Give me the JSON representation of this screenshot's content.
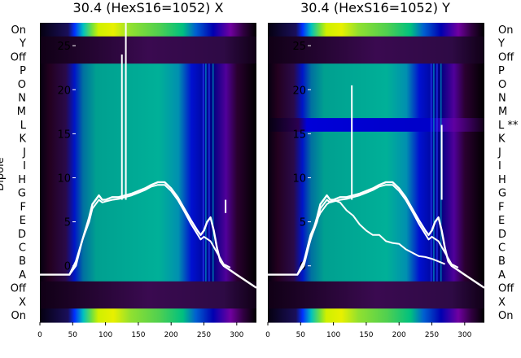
{
  "chart_data": [
    {
      "type": "heatmap",
      "title": "30.4 (HexS16=1052) X",
      "ylabel": "Dipole",
      "rows_top_to_bottom": [
        "On",
        "Y",
        "Off",
        "P",
        "O",
        "N",
        "M",
        "L",
        "K",
        "J",
        "I",
        "H",
        "G",
        "F",
        "E",
        "D",
        "C",
        "B",
        "A",
        "Off",
        "X",
        "On"
      ],
      "xticks": [
        0,
        50,
        100,
        150,
        200,
        250,
        300
      ],
      "yticks": [
        0,
        5,
        10,
        15,
        20,
        25
      ],
      "xlim": [
        0,
        330
      ],
      "ylim": [
        -6.4,
        27.6
      ],
      "overlay_lines": [
        {
          "x": [
            0,
            15,
            30,
            45,
            55,
            65,
            75,
            80,
            85,
            90,
            95,
            100,
            110,
            120,
            130,
            140,
            150,
            160,
            170,
            180,
            190,
            200,
            210,
            220,
            230,
            240,
            245,
            250,
            255,
            260,
            265,
            270,
            275,
            280,
            290,
            300,
            310,
            320,
            330
          ],
          "y": [
            -1,
            -1,
            -1,
            -1,
            0.5,
            3,
            5.5,
            7,
            7.5,
            8,
            7.5,
            7.5,
            7.8,
            7.8,
            8.0,
            8.2,
            8.5,
            8.8,
            9.2,
            9.5,
            9.5,
            8.8,
            7.8,
            6.5,
            5.2,
            4,
            3.5,
            4,
            5,
            5.5,
            4,
            2,
            0.5,
            0,
            -0.5,
            -1,
            -1.5,
            -2,
            -2.5
          ]
        },
        {
          "x": [
            45,
            55,
            65,
            75,
            80,
            85,
            90,
            95,
            100,
            110,
            120,
            130,
            140,
            150,
            160,
            170,
            180,
            190,
            200,
            210,
            220,
            230,
            240,
            245,
            250,
            260,
            270,
            280,
            290
          ],
          "y": [
            -1,
            0,
            3,
            5,
            6.5,
            7,
            7.5,
            7.2,
            7.3,
            7.5,
            7.6,
            7.8,
            8.0,
            8.3,
            8.6,
            9.0,
            9.2,
            9.2,
            8.5,
            7.5,
            6.2,
            4.8,
            3.6,
            3,
            3.3,
            2.8,
            1.5,
            0.2,
            -0.2
          ]
        }
      ],
      "spikes": [
        {
          "x": 125,
          "y": 24
        },
        {
          "x": 131,
          "y": 27.6
        },
        {
          "x": 283,
          "y": 6
        }
      ]
    },
    {
      "type": "heatmap",
      "title": "30.4 (HexS16=1052) Y",
      "rows_top_to_bottom": [
        "On",
        "Y",
        "Off",
        "P",
        "O",
        "N",
        "M",
        "L **",
        "K",
        "J",
        "I",
        "H",
        "G",
        "F",
        "E",
        "D",
        "C",
        "B",
        "A",
        "Off",
        "X",
        "On"
      ],
      "xticks": [
        0,
        50,
        100,
        150,
        200,
        250,
        300
      ],
      "yticks": [
        0,
        5,
        10,
        15,
        20,
        25
      ],
      "xlim": [
        0,
        330
      ],
      "ylim": [
        -6.4,
        27.6
      ],
      "overlay_lines": [
        {
          "x": [
            0,
            15,
            30,
            45,
            55,
            65,
            75,
            80,
            85,
            90,
            95,
            100,
            110,
            120,
            130,
            140,
            150,
            160,
            170,
            180,
            190,
            200,
            210,
            220,
            230,
            240,
            245,
            250,
            255,
            260,
            265,
            270,
            275,
            280,
            290,
            300,
            310,
            320,
            330
          ],
          "y": [
            -1,
            -1,
            -1,
            -1,
            0.5,
            3,
            5.5,
            7,
            7.5,
            8,
            7.5,
            7.5,
            7.8,
            7.8,
            8.0,
            8.2,
            8.5,
            8.8,
            9.2,
            9.5,
            9.5,
            8.8,
            7.8,
            6.5,
            5.2,
            4,
            3.5,
            4,
            5,
            5.5,
            4,
            2,
            0.5,
            0,
            -0.5,
            -1,
            -1.5,
            -2,
            -2.5
          ]
        },
        {
          "x": [
            45,
            55,
            65,
            75,
            80,
            85,
            90,
            95,
            100,
            110,
            120,
            130,
            140,
            150,
            160,
            170,
            180,
            190,
            200,
            210,
            220,
            230,
            240,
            245,
            250,
            260,
            270,
            280,
            290
          ],
          "y": [
            -1,
            0,
            3,
            5,
            6.5,
            7,
            7.5,
            7.2,
            7.3,
            7.5,
            7.6,
            7.8,
            8.0,
            8.3,
            8.6,
            9.0,
            9.2,
            9.2,
            8.5,
            7.5,
            6.2,
            4.8,
            3.6,
            3,
            3.3,
            2.8,
            1.5,
            0.2,
            -0.2
          ]
        },
        {
          "x": [
            45,
            55,
            65,
            75,
            80,
            90,
            100,
            110,
            120,
            130,
            140,
            150,
            160,
            170,
            180,
            190,
            200,
            210,
            220,
            230,
            240,
            250,
            260,
            270
          ],
          "y": [
            -1,
            0.5,
            3.5,
            5.2,
            6,
            7,
            7.5,
            7.2,
            6.3,
            5.7,
            4.7,
            4,
            3.5,
            3.5,
            2.8,
            2.6,
            2.5,
            1.9,
            1.5,
            1.1,
            1,
            0.8,
            0.5,
            0.2
          ]
        }
      ],
      "spikes": [
        {
          "x": 265,
          "y": 16
        },
        {
          "x": 128,
          "y": 20.5
        }
      ]
    }
  ]
}
